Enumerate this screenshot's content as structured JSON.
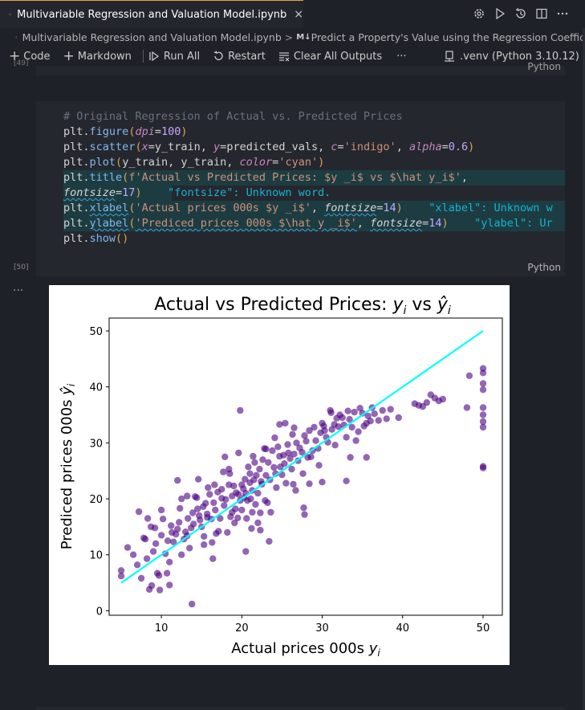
{
  "tab": {
    "title": "Multivariable Regression and Valuation Model.ipynb",
    "close": "×",
    "notebook_icon": "notebook-icon"
  },
  "header_icons": [
    "settings-gear-icon",
    "run-icon",
    "history-icon",
    "split-editor-icon",
    "more-icon"
  ],
  "breadcrumb": {
    "file": "Multivariable Regression and Valuation Model.ipynb",
    "separator": ">",
    "section_marker": "M↓",
    "section": "Predict a Property's Value using the Regression Coeffic"
  },
  "toolbar": {
    "code": "Code",
    "markdown": "Markdown",
    "run_all": "Run All",
    "restart": "Restart",
    "clear_outputs": "Clear All Outputs",
    "more": "···",
    "kernel": ".venv (Python 3.10.12)"
  },
  "prev_cell": {
    "language": "Python",
    "count": "[49]"
  },
  "cell": {
    "count": "[50]",
    "language": "Python",
    "lines": {
      "l1_comment": "# Original Regression of Actual vs. Predicted Prices",
      "l2_plt": "plt",
      "l2_dot": ".",
      "l2_fn": "figure",
      "l2_open": "(",
      "l2_kw": "dpi",
      "l2_eq": "=",
      "l2_num": "100",
      "l2_close": ")",
      "l3_plt": "plt",
      "l3_dot": ".",
      "l3_fn": "scatter",
      "l3_open": "(",
      "l3_kx": "x",
      "l3_eq1": "=",
      "l3_ytrain": "y_train",
      "l3_c1": ", ",
      "l3_ky": "y",
      "l3_eq2": "=",
      "l3_pred": "predicted_vals",
      "l3_c2": ", ",
      "l3_kc": "c",
      "l3_eq3": "=",
      "l3_sc": "'indigo'",
      "l3_c3": ", ",
      "l3_ka": "alpha",
      "l3_eq4": "=",
      "l3_na": "0.6",
      "l3_close": ")",
      "l4_plt": "plt",
      "l4_dot": ".",
      "l4_fn": "plot",
      "l4_open": "(",
      "l4_a1": "y_train",
      "l4_c1": ", ",
      "l4_a2": "y_train",
      "l4_c2": ", ",
      "l4_kc": "color",
      "l4_eq": "=",
      "l4_s": "'cyan'",
      "l4_close": ")",
      "l5_plt": "plt",
      "l5_dot": ".",
      "l5_fn": "title",
      "l5_open": "(",
      "l5_s": "f'Actual vs Predicted Prices: $y _i$ vs $\\hat y_i$'",
      "l5_c": ",",
      "l6_kw": "fontsize",
      "l6_eq": "=",
      "l6_num": "17",
      "l6_close": ")",
      "l6_warn": "\"fontsize\": Unknown word.",
      "l7_plt": "plt",
      "l7_dot": ".",
      "l7_fn": "xlabel",
      "l7_open": "(",
      "l7_s": "'Actual prices 000s $y _i$'",
      "l7_c": ", ",
      "l7_kw": "fontsize",
      "l7_eq": "=",
      "l7_num": "14",
      "l7_close": ")",
      "l7_warn": "\"xlabel\": Unknown w",
      "l8_plt": "plt",
      "l8_dot": ".",
      "l8_fn": "ylabel",
      "l8_open": "(",
      "l8_s": "'Prediced prices 000s $\\hat y _i$'",
      "l8_c": ", ",
      "l8_kw": "fontsize",
      "l8_eq": "=",
      "l8_num": "14",
      "l8_close": ")",
      "l8_warn": "\"ylabel\": Ur",
      "l9_plt": "plt",
      "l9_dot": ".",
      "l9_fn": "show",
      "l9_parens": "()"
    }
  },
  "output": {
    "dots": "···"
  },
  "colors": {
    "scatter": "#4b0082",
    "line": "#00ffff",
    "accent": "#e8a044"
  },
  "chart_data": {
    "type": "scatter",
    "title_text": "Actual vs Predicted Prices: ",
    "title_y": "y",
    "title_sub": "i",
    "title_vs": " vs ",
    "title_hat": "ŷ",
    "xlabel_text": "Actual prices 000s ",
    "xlabel_y": "y",
    "xlabel_sub": "i",
    "ylabel_text": "Prediced prices 000s ",
    "ylabel_hat": "ŷ",
    "ylabel_sub": "i",
    "xlim": [
      3.5,
      52.4
    ],
    "ylim": [
      -0.8,
      52.3
    ],
    "xticks": [
      10,
      20,
      30,
      40,
      50
    ],
    "yticks": [
      0,
      10,
      20,
      30,
      40,
      50
    ],
    "line": {
      "x": [
        5,
        50
      ],
      "y": [
        5,
        50
      ],
      "color": "cyan"
    },
    "series": [
      {
        "name": "",
        "color": "indigo",
        "alpha": 0.6,
        "points": [
          [
            5,
            7.2
          ],
          [
            5,
            6.2
          ],
          [
            5.8,
            11.3
          ],
          [
            6.5,
            10
          ],
          [
            7,
            8.2
          ],
          [
            7.5,
            5.8
          ],
          [
            7.2,
            17.7
          ],
          [
            7.8,
            13
          ],
          [
            8,
            12.8
          ],
          [
            8.2,
            9.3
          ],
          [
            8.5,
            3.8
          ],
          [
            8.8,
            4.5
          ],
          [
            8.3,
            16.5
          ],
          [
            8.7,
            15
          ],
          [
            9,
            10.6
          ],
          [
            9.2,
            14.8
          ],
          [
            9.5,
            6.7
          ],
          [
            9.7,
            6.3
          ],
          [
            9.3,
            12
          ],
          [
            10,
            13.5
          ],
          [
            10.2,
            16.4
          ],
          [
            10,
            18
          ],
          [
            10.5,
            10.2
          ],
          [
            10.8,
            12.5
          ],
          [
            11,
            8.7
          ],
          [
            11.2,
            15.2
          ],
          [
            11.3,
            14
          ],
          [
            11,
            4.6
          ],
          [
            11.5,
            12.3
          ],
          [
            11.8,
            13.7
          ],
          [
            12,
            23.3
          ],
          [
            12.3,
            18.3
          ],
          [
            12.5,
            20
          ],
          [
            12.2,
            15.8
          ],
          [
            12.8,
            12.8
          ],
          [
            13,
            14.1
          ],
          [
            13.2,
            13.4
          ],
          [
            13.5,
            11.2
          ],
          [
            13.7,
            14.8
          ],
          [
            13.3,
            16.5
          ],
          [
            13.9,
            17.5
          ],
          [
            14,
            15.5
          ],
          [
            14.2,
            20.4
          ],
          [
            14.4,
            20.2
          ],
          [
            14.5,
            18.2
          ],
          [
            14.7,
            17
          ],
          [
            14.8,
            16.2
          ],
          [
            15,
            15
          ],
          [
            15.2,
            18.6
          ],
          [
            15.5,
            19.2
          ],
          [
            15.7,
            17.3
          ],
          [
            15.3,
            13.3
          ],
          [
            15.8,
            22
          ],
          [
            16,
            20.8
          ],
          [
            16.2,
            16.4
          ],
          [
            16.5,
            19.3
          ],
          [
            16.7,
            18
          ],
          [
            16.8,
            13.8
          ],
          [
            17,
            21.2
          ],
          [
            17.3,
            16.5
          ],
          [
            17.5,
            20.1
          ],
          [
            17.5,
            21.7
          ],
          [
            17.8,
            18.8
          ],
          [
            18,
            19.9
          ],
          [
            18.2,
            14
          ],
          [
            18.4,
            22.5
          ],
          [
            18.5,
            24.5
          ],
          [
            18.6,
            16.8
          ],
          [
            18.8,
            20.5
          ],
          [
            19,
            22.3
          ],
          [
            19.2,
            18.2
          ],
          [
            19.3,
            21.1
          ],
          [
            19.5,
            16.6
          ],
          [
            19.6,
            20.8
          ],
          [
            19.8,
            19.7
          ],
          [
            20,
            22.5
          ],
          [
            20,
            18
          ],
          [
            20.2,
            21.8
          ],
          [
            20.3,
            20.2
          ],
          [
            20.4,
            23.5
          ],
          [
            20.5,
            21
          ],
          [
            20.6,
            16.5
          ],
          [
            20.7,
            19.7
          ],
          [
            20.8,
            25.7
          ],
          [
            21,
            22.9
          ],
          [
            21.1,
            20
          ],
          [
            21.2,
            14.7
          ],
          [
            21.3,
            21.5
          ],
          [
            21.5,
            23.4
          ],
          [
            21.6,
            26.5
          ],
          [
            21.7,
            19
          ],
          [
            21.8,
            24.2
          ],
          [
            22,
            21
          ],
          [
            22.2,
            25.3
          ],
          [
            22.3,
            17.5
          ],
          [
            22.4,
            23.1
          ],
          [
            22.5,
            22.6
          ],
          [
            22.6,
            27
          ],
          [
            22.8,
            29
          ],
          [
            23,
            24.2
          ],
          [
            23,
            28.9
          ],
          [
            23.2,
            19.3
          ],
          [
            23.3,
            26.5
          ],
          [
            23.5,
            23.4
          ],
          [
            23.6,
            17.6
          ],
          [
            23.8,
            28.6
          ],
          [
            24,
            25.6
          ],
          [
            24.2,
            24.5
          ],
          [
            24.3,
            22
          ],
          [
            24.5,
            29.3
          ],
          [
            24.7,
            27.6
          ],
          [
            24.8,
            25.7
          ],
          [
            25,
            24.3
          ],
          [
            25.2,
            27.8
          ],
          [
            25.3,
            26.3
          ],
          [
            25.5,
            22.8
          ],
          [
            25.7,
            29.7
          ],
          [
            25.8,
            28.2
          ],
          [
            26,
            27.2
          ],
          [
            26.2,
            25.3
          ],
          [
            26.3,
            31.5
          ],
          [
            26.5,
            28
          ],
          [
            26.7,
            21.5
          ],
          [
            26.8,
            30
          ],
          [
            27,
            26.8
          ],
          [
            27.2,
            29.1
          ],
          [
            27.5,
            28.3
          ],
          [
            27.6,
            24.5
          ],
          [
            27.8,
            31.3
          ],
          [
            28,
            30.3
          ],
          [
            28.2,
            27.4
          ],
          [
            28.4,
            32.2
          ],
          [
            28.6,
            27.5
          ],
          [
            28.8,
            28.6
          ],
          [
            29,
            32.8
          ],
          [
            29.2,
            30.4
          ],
          [
            29.5,
            29
          ],
          [
            29.6,
            26
          ],
          [
            29.8,
            31.8
          ],
          [
            30,
            33.5
          ],
          [
            30.2,
            33
          ],
          [
            30.3,
            32.2
          ],
          [
            30.5,
            31
          ],
          [
            30.7,
            30.1
          ],
          [
            31,
            35.8
          ],
          [
            31.2,
            32.4
          ],
          [
            31.5,
            33.3
          ],
          [
            31.6,
            29.6
          ],
          [
            31.8,
            34.4
          ],
          [
            32,
            32.9
          ],
          [
            32.2,
            35
          ],
          [
            32.5,
            34.5
          ],
          [
            32.7,
            33.2
          ],
          [
            33,
            31
          ],
          [
            33.2,
            35.7
          ],
          [
            33.4,
            34.2
          ],
          [
            33.5,
            27.4
          ],
          [
            33.7,
            32.8
          ],
          [
            34,
            35.5
          ],
          [
            34.2,
            30.4
          ],
          [
            34.5,
            32
          ],
          [
            34.7,
            36.2
          ],
          [
            35,
            35.3
          ],
          [
            35.2,
            33
          ],
          [
            35.5,
            33.5
          ],
          [
            35.7,
            34.8
          ],
          [
            36,
            33.9
          ],
          [
            36.2,
            36.3
          ],
          [
            36.5,
            35.2
          ],
          [
            37,
            34
          ],
          [
            37.5,
            35.8
          ],
          [
            38,
            34.3
          ],
          [
            38.5,
            36
          ],
          [
            39.5,
            34.5
          ],
          [
            41.5,
            37
          ],
          [
            42,
            36.7
          ],
          [
            42.5,
            36.5
          ],
          [
            43,
            37.2
          ],
          [
            43.5,
            38.6
          ],
          [
            44,
            38
          ],
          [
            44.5,
            37.5
          ],
          [
            45,
            37.8
          ],
          [
            48,
            36.3
          ],
          [
            48.3,
            42
          ],
          [
            50,
            43.3
          ],
          [
            50,
            42.5
          ],
          [
            50,
            40.6
          ],
          [
            50,
            39.5
          ],
          [
            50,
            36.3
          ],
          [
            50,
            35
          ],
          [
            50,
            33.8
          ],
          [
            50,
            32.8
          ],
          [
            50,
            25.8
          ],
          [
            50,
            25.5
          ],
          [
            12,
            14.6
          ],
          [
            13.8,
            1.2
          ],
          [
            15.3,
            11.8
          ],
          [
            16.4,
            9.3
          ],
          [
            14.6,
            23.5
          ],
          [
            17.9,
            27.5
          ],
          [
            19.8,
            35.8
          ],
          [
            21,
            24.5
          ],
          [
            22.3,
            14.4
          ],
          [
            25.4,
            33.5
          ],
          [
            26.4,
            22.6
          ],
          [
            30,
            23
          ],
          [
            33,
            23.2
          ],
          [
            35.5,
            27.4
          ],
          [
            27.7,
            18.4
          ],
          [
            19.6,
            28.2
          ],
          [
            12.5,
            10
          ],
          [
            16.3,
            12.2
          ],
          [
            10.7,
            6.7
          ],
          [
            9.8,
            3.7
          ],
          [
            20.5,
            10.6
          ],
          [
            23.4,
            12.4
          ],
          [
            17.7,
            24.8
          ],
          [
            22,
            15.7
          ],
          [
            24.7,
            33.3
          ],
          [
            26.5,
            32.7
          ],
          [
            28.4,
            22.7
          ],
          [
            31.1,
            35.4
          ],
          [
            27.8,
            17.2
          ],
          [
            13.2,
            20.5
          ],
          [
            18.8,
            17.6
          ],
          [
            21.4,
            27.6
          ],
          [
            24.1,
            30.9
          ],
          [
            16.6,
            22.5
          ],
          [
            19.1,
            15.7
          ],
          [
            22.9,
            19.7
          ],
          [
            15.7,
            16.7
          ],
          [
            18.4,
            25.3
          ],
          [
            21.3,
            17.6
          ],
          [
            17.1,
            14.2
          ]
        ]
      }
    ]
  }
}
